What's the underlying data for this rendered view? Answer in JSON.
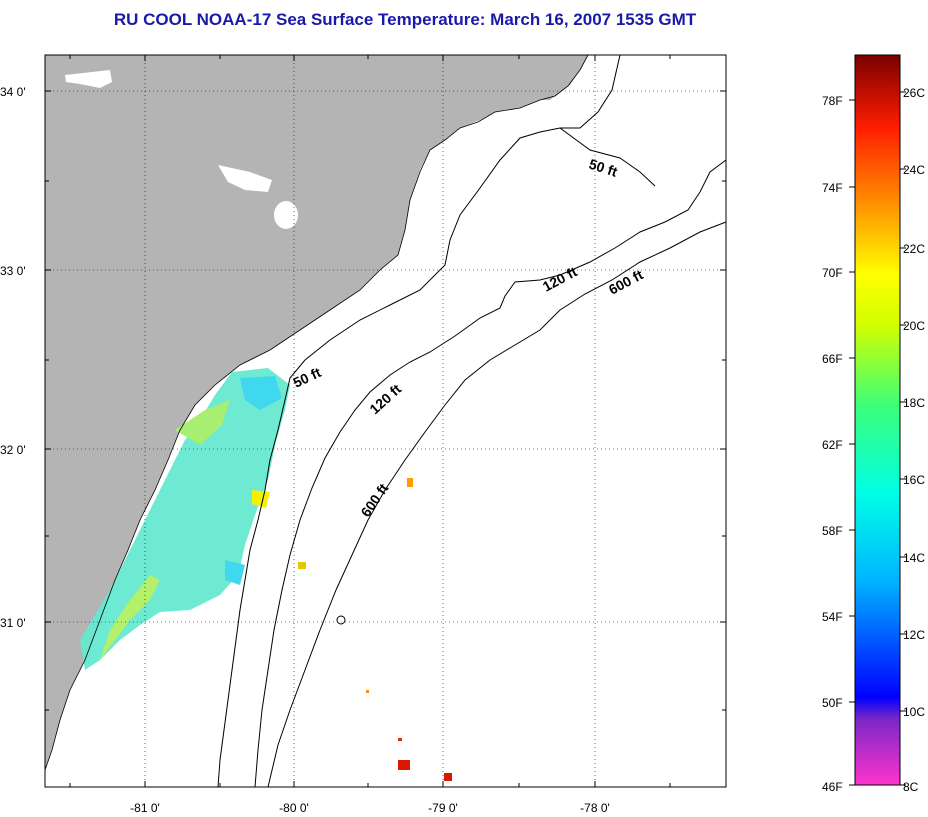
{
  "title": "RU COOL  NOAA-17  Sea Surface Temperature:  March 16, 2007 1535 GMT",
  "map": {
    "lat_ticks": [
      "34 0'",
      "33 0'",
      "32 0'",
      "31 0'"
    ],
    "lon_ticks": [
      "-81 0'",
      "-80 0'",
      "-79 0'",
      "-78 0'"
    ],
    "contours": [
      "50 ft",
      "50 ft",
      "120 ft",
      "120 ft",
      "600 ft",
      "600 ft"
    ]
  },
  "colorbar": {
    "fahrenheit": [
      "78F",
      "74F",
      "70F",
      "66F",
      "62F",
      "58F",
      "54F",
      "50F",
      "46F"
    ],
    "celsius": [
      "26C",
      "24C",
      "22C",
      "20C",
      "18C",
      "16C",
      "14C",
      "12C",
      "10C",
      "8C"
    ]
  },
  "colors": {
    "land": "#b4b4b4",
    "ocean": "#ffffff",
    "title": "#1a1aa8"
  }
}
